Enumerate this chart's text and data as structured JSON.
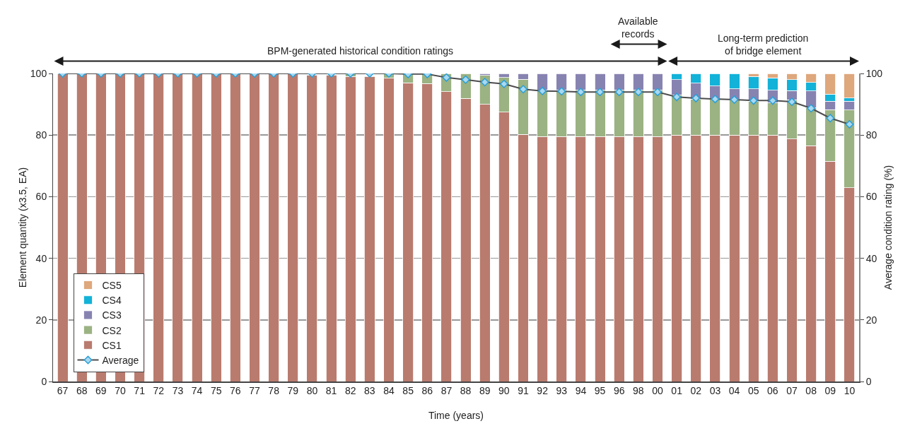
{
  "chart_data": {
    "type": "bar",
    "stacked": true,
    "xlabel": "Time (years)",
    "ylabel": "Element quantity (x3.5, EA)",
    "y2label": "Average condition rating (%)",
    "categories": [
      "67",
      "68",
      "69",
      "70",
      "71",
      "72",
      "73",
      "74",
      "75",
      "76",
      "77",
      "78",
      "79",
      "80",
      "81",
      "82",
      "83",
      "84",
      "85",
      "86",
      "87",
      "88",
      "89",
      "90",
      "91",
      "92",
      "93",
      "94",
      "95",
      "96",
      "98",
      "00",
      "01",
      "02",
      "03",
      "04",
      "05",
      "06",
      "07",
      "08",
      "09",
      "10"
    ],
    "series": [
      {
        "name": "CS1",
        "color": "#b97b6e",
        "values": [
          100,
          100,
          100,
          100,
          100,
          100,
          100,
          100,
          100,
          100,
          100,
          100,
          100,
          99.5,
          99.5,
          99,
          99,
          98.4,
          97,
          96.7,
          94.1,
          91.9,
          90,
          87.5,
          80.2,
          79.5,
          79.5,
          79.5,
          79.5,
          79.5,
          79.5,
          79.5,
          80,
          80,
          80,
          80,
          80,
          80,
          78.7,
          76.6,
          71.5,
          62.9
        ]
      },
      {
        "name": "CS2",
        "color": "#9bb282",
        "values": [
          null,
          null,
          null,
          null,
          null,
          null,
          null,
          null,
          null,
          null,
          null,
          null,
          null,
          null,
          null,
          1,
          null,
          1.6,
          3,
          3.3,
          5.9,
          8.1,
          9.4,
          11.2,
          17.9,
          15,
          15,
          15,
          15,
          15,
          15,
          15,
          13,
          11.7,
          11.9,
          11.7,
          11,
          10.4,
          12.8,
          12.2,
          16.7,
          25.2
        ]
      },
      {
        "name": "CS3",
        "color": "#8783b1",
        "values": [
          null,
          null,
          null,
          null,
          null,
          null,
          null,
          null,
          null,
          null,
          null,
          null,
          null,
          null,
          null,
          null,
          null,
          null,
          null,
          null,
          null,
          null,
          0.6,
          1.3,
          1.9,
          5.5,
          5.5,
          5.5,
          5.5,
          5.5,
          5.5,
          5.5,
          5,
          5.2,
          4,
          3.3,
          4,
          4.2,
          2.9,
          5.5,
          2.8,
          2.9
        ]
      },
      {
        "name": "CS4",
        "color": "#13b2d8",
        "values": [
          null,
          null,
          null,
          null,
          null,
          null,
          null,
          null,
          null,
          null,
          null,
          null,
          null,
          null,
          null,
          null,
          null,
          null,
          null,
          null,
          null,
          null,
          null,
          null,
          null,
          null,
          null,
          null,
          null,
          null,
          null,
          null,
          2,
          3.1,
          4.1,
          5,
          4,
          4,
          3.6,
          2.8,
          2.3,
          1
        ]
      },
      {
        "name": "CS5",
        "color": "#dea77c",
        "values": [
          null,
          null,
          null,
          null,
          null,
          null,
          null,
          null,
          null,
          null,
          null,
          null,
          null,
          null,
          null,
          null,
          null,
          null,
          null,
          null,
          null,
          null,
          null,
          null,
          null,
          null,
          null,
          null,
          null,
          null,
          null,
          null,
          null,
          null,
          null,
          null,
          1,
          1.4,
          2,
          2.9,
          6.7,
          8
        ]
      },
      {
        "name": "Average",
        "type": "line",
        "axis": "y2",
        "color": "#4d4d4d",
        "marker": "diamond",
        "values": [
          100,
          100,
          100,
          100,
          100,
          100,
          100,
          100,
          100,
          100,
          100,
          100,
          100,
          100,
          100,
          100,
          100,
          100,
          99.8,
          99.8,
          98.7,
          98,
          97.2,
          96.6,
          94.9,
          94.3,
          94.2,
          94,
          94,
          94,
          94,
          94,
          92.4,
          92,
          91.7,
          91.5,
          91.2,
          91.2,
          90.8,
          88.7,
          85.5,
          83.5
        ]
      }
    ],
    "ylim": [
      0,
      100
    ],
    "yticks": [
      0,
      20,
      40,
      60,
      80,
      100
    ],
    "y2lim": [
      0,
      100
    ],
    "y2ticks": [
      0,
      20,
      40,
      60,
      80,
      100
    ],
    "grid": "y",
    "legend": "bottom left",
    "annotations": [
      "BPM-generated historical condition ratings",
      "Available\nrecords",
      "Long-term prediction\nof bridge element"
    ]
  }
}
